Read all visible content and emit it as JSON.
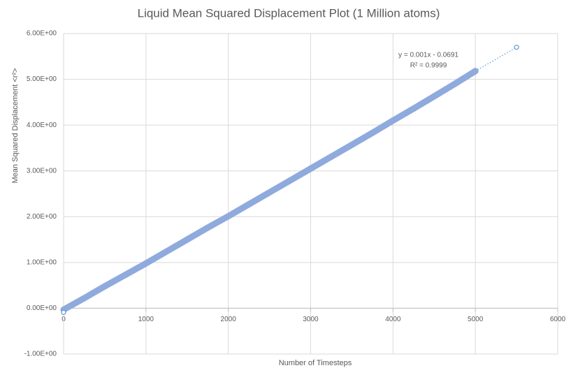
{
  "chart_data": {
    "type": "scatter",
    "title": "Liquid Mean Squared Displacement Plot (1 Million atoms)",
    "x_label": "Number  of Timesteps",
    "y_label": "Mean Squared Displacement <r²>",
    "annotations": [
      "y = 0.001x - 0.0691",
      "R² = 0.9999"
    ],
    "xlim": [
      0,
      6000
    ],
    "xticks": [
      0,
      1000,
      2000,
      3000,
      4000,
      5000,
      6000
    ],
    "ylim": [
      -1,
      6
    ],
    "yticks": [
      {
        "value": -1,
        "label": "-1.00E+00"
      },
      {
        "value": 0,
        "label": "0.00E+00"
      },
      {
        "value": 1,
        "label": "1.00E+00"
      },
      {
        "value": 2,
        "label": "2.00E+00"
      },
      {
        "value": 3,
        "label": "3.00E+00"
      },
      {
        "value": 4,
        "label": "4.00E+00"
      },
      {
        "value": 5,
        "label": "5.00E+00"
      },
      {
        "value": 6,
        "label": "6.00E+00"
      }
    ],
    "grid": true,
    "series": [
      {
        "color": "#8faadc",
        "marker": "filled",
        "x": [
          0,
          250,
          500,
          750,
          1000,
          1250,
          1500,
          1750,
          2000,
          2250,
          2500,
          2750,
          3000,
          3250,
          3500,
          3750,
          4000,
          4250,
          4500,
          4750,
          5000
        ],
        "values": [
          -0.03,
          0.22,
          0.48,
          0.73,
          0.98,
          1.24,
          1.5,
          1.76,
          2.01,
          2.27,
          2.53,
          2.79,
          3.05,
          3.31,
          3.57,
          3.83,
          4.1,
          4.36,
          4.63,
          4.9,
          5.18
        ]
      },
      {
        "color": "#5b9bd5",
        "marker": "hollow",
        "x": [
          0,
          5500
        ],
        "values": [
          -0.09,
          5.7
        ]
      }
    ]
  }
}
